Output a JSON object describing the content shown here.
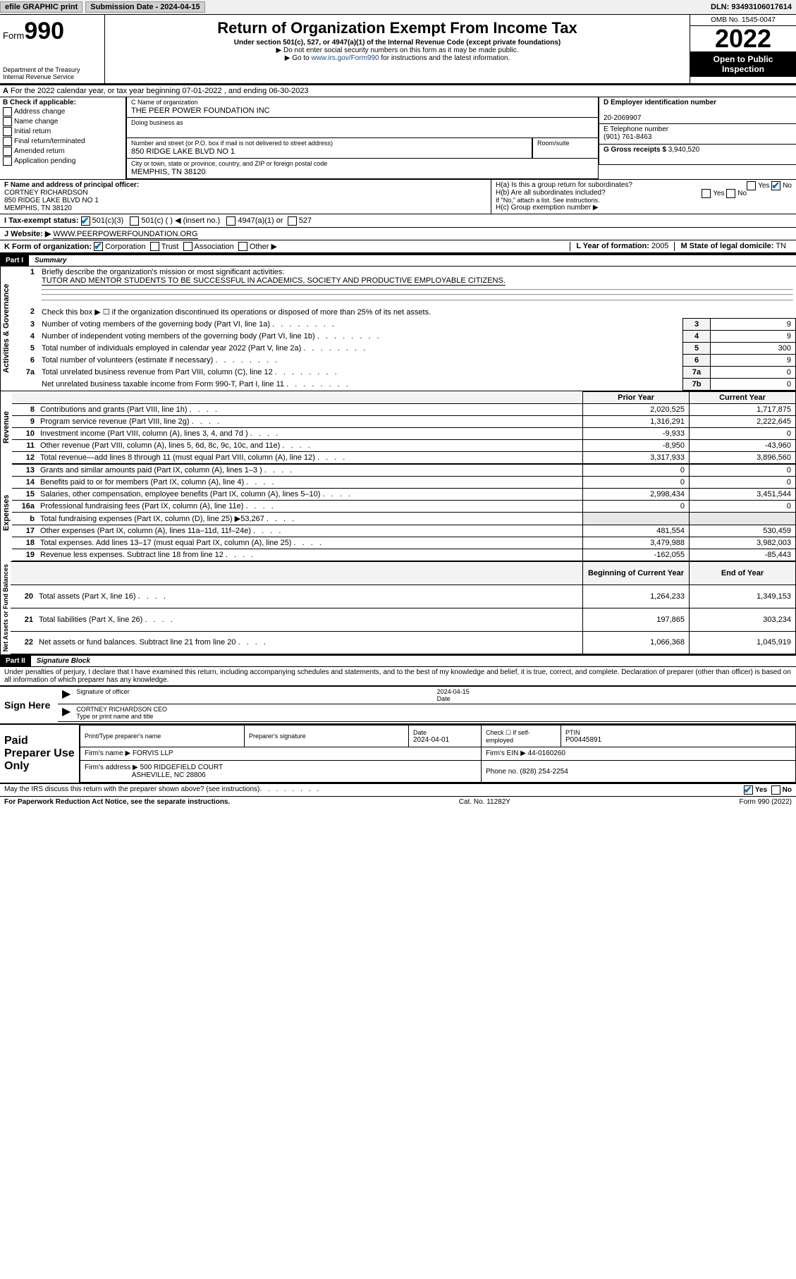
{
  "topbar": {
    "efile": "efile GRAPHIC print",
    "subdate_label": "Submission Date - 2024-04-15",
    "dln": "DLN: 93493106017614"
  },
  "header": {
    "form_prefix": "Form",
    "form_number": "990",
    "title": "Return of Organization Exempt From Income Tax",
    "subtitle": "Under section 501(c), 527, or 4947(a)(1) of the Internal Revenue Code (except private foundations)",
    "note1": "▶ Do not enter social security numbers on this form as it may be made public.",
    "note2_prefix": "▶ Go to ",
    "note2_link": "www.irs.gov/Form990",
    "note2_suffix": " for instructions and the latest information.",
    "dept": "Department of the Treasury\nInternal Revenue Service",
    "omb": "OMB No. 1545-0047",
    "year": "2022",
    "openpub": "Open to Public Inspection"
  },
  "period": "For the 2022 calendar year, or tax year beginning 07-01-2022 , and ending 06-30-2023",
  "sectionA": "A",
  "sectionB": {
    "label": "B Check if applicable:",
    "items": [
      "Address change",
      "Name change",
      "Initial return",
      "Final return/terminated",
      "Amended return",
      "Application pending"
    ]
  },
  "sectionC": {
    "name_label": "C Name of organization",
    "name": "THE PEER POWER FOUNDATION INC",
    "dba_label": "Doing business as",
    "dba": "",
    "addr_label": "Number and street (or P.O. box if mail is not delivered to street address)",
    "room_label": "Room/suite",
    "addr": "850 RIDGE LAKE BLVD NO 1",
    "city_label": "City or town, state or province, country, and ZIP or foreign postal code",
    "city": "MEMPHIS, TN  38120"
  },
  "sectionD": {
    "label": "D Employer identification number",
    "value": "20-2069907"
  },
  "sectionE": {
    "label": "E Telephone number",
    "value": "(901) 761-8463"
  },
  "sectionG": {
    "label": "G Gross receipts $",
    "value": "3,940,520"
  },
  "sectionF": {
    "label": "F Name and address of principal officer:",
    "name": "CORTNEY RICHARDSON",
    "addr1": "850 RIDGE LAKE BLVD NO 1",
    "addr2": "MEMPHIS, TN  38120"
  },
  "sectionH": {
    "a_label": "H(a)  Is this a group return for subordinates?",
    "a_yes": "Yes",
    "a_no": "No",
    "b_label": "H(b)  Are all subordinates included?",
    "b_note": "If \"No,\" attach a list. See instructions.",
    "c_label": "H(c)  Group exemption number ▶"
  },
  "sectionI": {
    "label": "I   Tax-exempt status:",
    "opt1": "501(c)(3)",
    "opt2": "501(c) (   ) ◀ (insert no.)",
    "opt3": "4947(a)(1) or",
    "opt4": "527"
  },
  "sectionJ": {
    "label": "J   Website: ▶",
    "value": "WWW.PEERPOWERFOUNDATION.ORG"
  },
  "sectionK": {
    "label": "K Form of organization:",
    "opts": [
      "Corporation",
      "Trust",
      "Association",
      "Other ▶"
    ]
  },
  "sectionL": {
    "label": "L Year of formation:",
    "value": "2005"
  },
  "sectionM": {
    "label": "M State of legal domicile:",
    "value": "TN"
  },
  "part1": {
    "hdr": "Part I",
    "title": "Summary"
  },
  "vtabs": {
    "gov": "Activities & Governance",
    "rev": "Revenue",
    "exp": "Expenses",
    "net": "Net Assets or\nFund Balances"
  },
  "summary": {
    "q1": "Briefly describe the organization's mission or most significant activities:",
    "mission": "TUTOR AND MENTOR STUDENTS TO BE SUCCESSFUL IN ACADEMICS, SOCIETY AND PRODUCTIVE EMPLOYABLE CITIZENS.",
    "q2": "Check this box ▶ ☐ if the organization discontinued its operations or disposed of more than 25% of its net assets.",
    "rows": [
      {
        "n": "3",
        "t": "Number of voting members of the governing body (Part VI, line 1a)",
        "b": "3",
        "v": "9"
      },
      {
        "n": "4",
        "t": "Number of independent voting members of the governing body (Part VI, line 1b)",
        "b": "4",
        "v": "9"
      },
      {
        "n": "5",
        "t": "Total number of individuals employed in calendar year 2022 (Part V, line 2a)",
        "b": "5",
        "v": "300"
      },
      {
        "n": "6",
        "t": "Total number of volunteers (estimate if necessary)",
        "b": "6",
        "v": "9"
      },
      {
        "n": "7a",
        "t": "Total unrelated business revenue from Part VIII, column (C), line 12",
        "b": "7a",
        "v": "0"
      },
      {
        "n": "",
        "t": "Net unrelated business taxable income from Form 990-T, Part I, line 11",
        "b": "7b",
        "v": "0"
      }
    ]
  },
  "fin": {
    "hdr_prior": "Prior Year",
    "hdr_curr": "Current Year",
    "revenue": [
      {
        "n": "8",
        "t": "Contributions and grants (Part VIII, line 1h)",
        "p": "2,020,525",
        "c": "1,717,875"
      },
      {
        "n": "9",
        "t": "Program service revenue (Part VIII, line 2g)",
        "p": "1,316,291",
        "c": "2,222,645"
      },
      {
        "n": "10",
        "t": "Investment income (Part VIII, column (A), lines 3, 4, and 7d )",
        "p": "-9,933",
        "c": "0"
      },
      {
        "n": "11",
        "t": "Other revenue (Part VIII, column (A), lines 5, 6d, 8c, 9c, 10c, and 11e)",
        "p": "-8,950",
        "c": "-43,960"
      },
      {
        "n": "12",
        "t": "Total revenue—add lines 8 through 11 (must equal Part VIII, column (A), line 12)",
        "p": "3,317,933",
        "c": "3,896,560"
      }
    ],
    "expenses": [
      {
        "n": "13",
        "t": "Grants and similar amounts paid (Part IX, column (A), lines 1–3 )",
        "p": "0",
        "c": "0"
      },
      {
        "n": "14",
        "t": "Benefits paid to or for members (Part IX, column (A), line 4)",
        "p": "0",
        "c": "0"
      },
      {
        "n": "15",
        "t": "Salaries, other compensation, employee benefits (Part IX, column (A), lines 5–10)",
        "p": "2,998,434",
        "c": "3,451,544"
      },
      {
        "n": "16a",
        "t": "Professional fundraising fees (Part IX, column (A), line 11e)",
        "p": "0",
        "c": "0"
      },
      {
        "n": "b",
        "t": "Total fundraising expenses (Part IX, column (D), line 25) ▶53,267",
        "p": "",
        "c": "",
        "grey": true
      },
      {
        "n": "17",
        "t": "Other expenses (Part IX, column (A), lines 11a–11d, 11f–24e)",
        "p": "481,554",
        "c": "530,459"
      },
      {
        "n": "18",
        "t": "Total expenses. Add lines 13–17 (must equal Part IX, column (A), line 25)",
        "p": "3,479,988",
        "c": "3,982,003"
      },
      {
        "n": "19",
        "t": "Revenue less expenses. Subtract line 18 from line 12",
        "p": "-162,055",
        "c": "-85,443"
      }
    ],
    "hdr_beg": "Beginning of Current Year",
    "hdr_end": "End of Year",
    "netassets": [
      {
        "n": "20",
        "t": "Total assets (Part X, line 16)",
        "p": "1,264,233",
        "c": "1,349,153"
      },
      {
        "n": "21",
        "t": "Total liabilities (Part X, line 26)",
        "p": "197,865",
        "c": "303,234"
      },
      {
        "n": "22",
        "t": "Net assets or fund balances. Subtract line 21 from line 20",
        "p": "1,066,368",
        "c": "1,045,919"
      }
    ]
  },
  "part2": {
    "hdr": "Part II",
    "title": "Signature Block",
    "decl": "Under penalties of perjury, I declare that I have examined this return, including accompanying schedules and statements, and to the best of my knowledge and belief, it is true, correct, and complete. Declaration of preparer (other than officer) is based on all information of which preparer has any knowledge."
  },
  "sign": {
    "label": "Sign Here",
    "sig_label": "Signature of officer",
    "date_label": "Date",
    "date": "2024-04-15",
    "name": "CORTNEY RICHARDSON CEO",
    "name_label": "Type or print name and title"
  },
  "preparer": {
    "label": "Paid Preparer Use Only",
    "name_label": "Print/Type preparer's name",
    "sig_label": "Preparer's signature",
    "date_label": "Date",
    "date": "2024-04-01",
    "check_label": "Check ☐ if self-employed",
    "ptin_label": "PTIN",
    "ptin": "P00445891",
    "firm_name_label": "Firm's name    ▶",
    "firm_name": "FORVIS LLP",
    "firm_ein_label": "Firm's EIN ▶",
    "firm_ein": "44-0160260",
    "firm_addr_label": "Firm's address ▶",
    "firm_addr1": "500 RIDGEFIELD COURT",
    "firm_addr2": "ASHEVILLE, NC  28806",
    "phone_label": "Phone no.",
    "phone": "(828) 254-2254"
  },
  "footer": {
    "discuss": "May the IRS discuss this return with the preparer shown above? (see instructions)",
    "yes": "Yes",
    "no": "No",
    "paperwork": "For Paperwork Reduction Act Notice, see the separate instructions.",
    "cat": "Cat. No. 11282Y",
    "formref": "Form 990 (2022)"
  }
}
